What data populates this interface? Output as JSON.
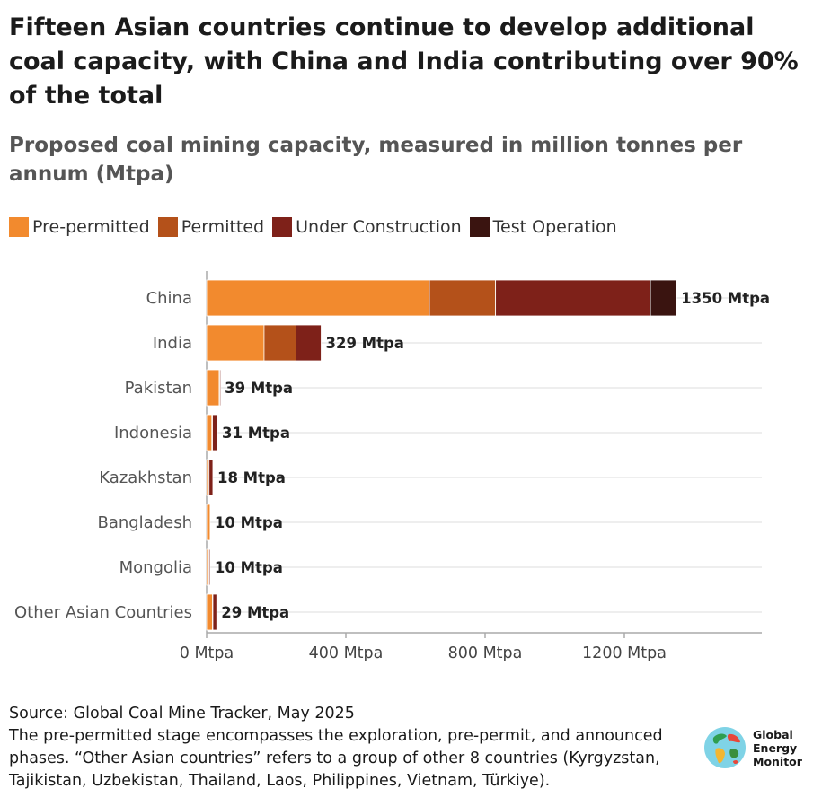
{
  "title": "Fifteen Asian countries continue to develop additional coal capacity, with China and India contributing over 90% of the total",
  "subtitle": "Proposed coal mining capacity, measured in million tonnes per annum (Mtpa)",
  "colors": {
    "pre_permitted": "#f28a2e",
    "permitted": "#b4511a",
    "under_construction": "#7e2119",
    "test_operation": "#3a1410",
    "grid": "#dddddd",
    "axis": "#aaaaaa"
  },
  "chart_data": {
    "type": "bar",
    "orientation": "horizontal",
    "stacked": true,
    "categories": [
      "China",
      "India",
      "Pakistan",
      "Indonesia",
      "Kazakhstan",
      "Bangladesh",
      "Mongolia",
      "Other Asian Countries"
    ],
    "series": [
      {
        "name": "Pre-permitted",
        "values": [
          640,
          165,
          36,
          15,
          4,
          10,
          5,
          17
        ]
      },
      {
        "name": "Permitted",
        "values": [
          190,
          92,
          2,
          2,
          3,
          0,
          2,
          1
        ]
      },
      {
        "name": "Under Construction",
        "values": [
          445,
          72,
          1,
          14,
          11,
          0,
          3,
          11
        ]
      },
      {
        "name": "Test Operation",
        "values": [
          75,
          0,
          0,
          0,
          0,
          0,
          0,
          0
        ]
      }
    ],
    "totals": [
      1350,
      329,
      39,
      31,
      18,
      10,
      10,
      29
    ],
    "total_labels": [
      "1350 Mtpa",
      "329 Mtpa",
      "39 Mtpa",
      "31 Mtpa",
      "18 Mtpa",
      "10 Mtpa",
      "10 Mtpa",
      "29 Mtpa"
    ],
    "xticks": [
      0,
      400,
      800,
      1200
    ],
    "xtick_labels": [
      "0 Mtpa",
      "400 Mtpa",
      "800 Mtpa",
      "1200 Mtpa"
    ],
    "xlim": [
      0,
      1600
    ],
    "grid": true,
    "legend_position": "top-left"
  },
  "footer": {
    "source": "Source: Global Coal Mine Tracker, May 2025",
    "note": "The pre-permitted stage encompasses the exploration, pre-permit, and announced phases. “Other Asian countries” refers to a group of other 8 countries (Kyrgyzstan, Tajikistan, Uzbekistan, Thailand, Laos, Philippines, Vietnam, Türkiye)."
  },
  "logo": {
    "line1": "Global",
    "line2": "Energy",
    "line3": "Monitor"
  }
}
